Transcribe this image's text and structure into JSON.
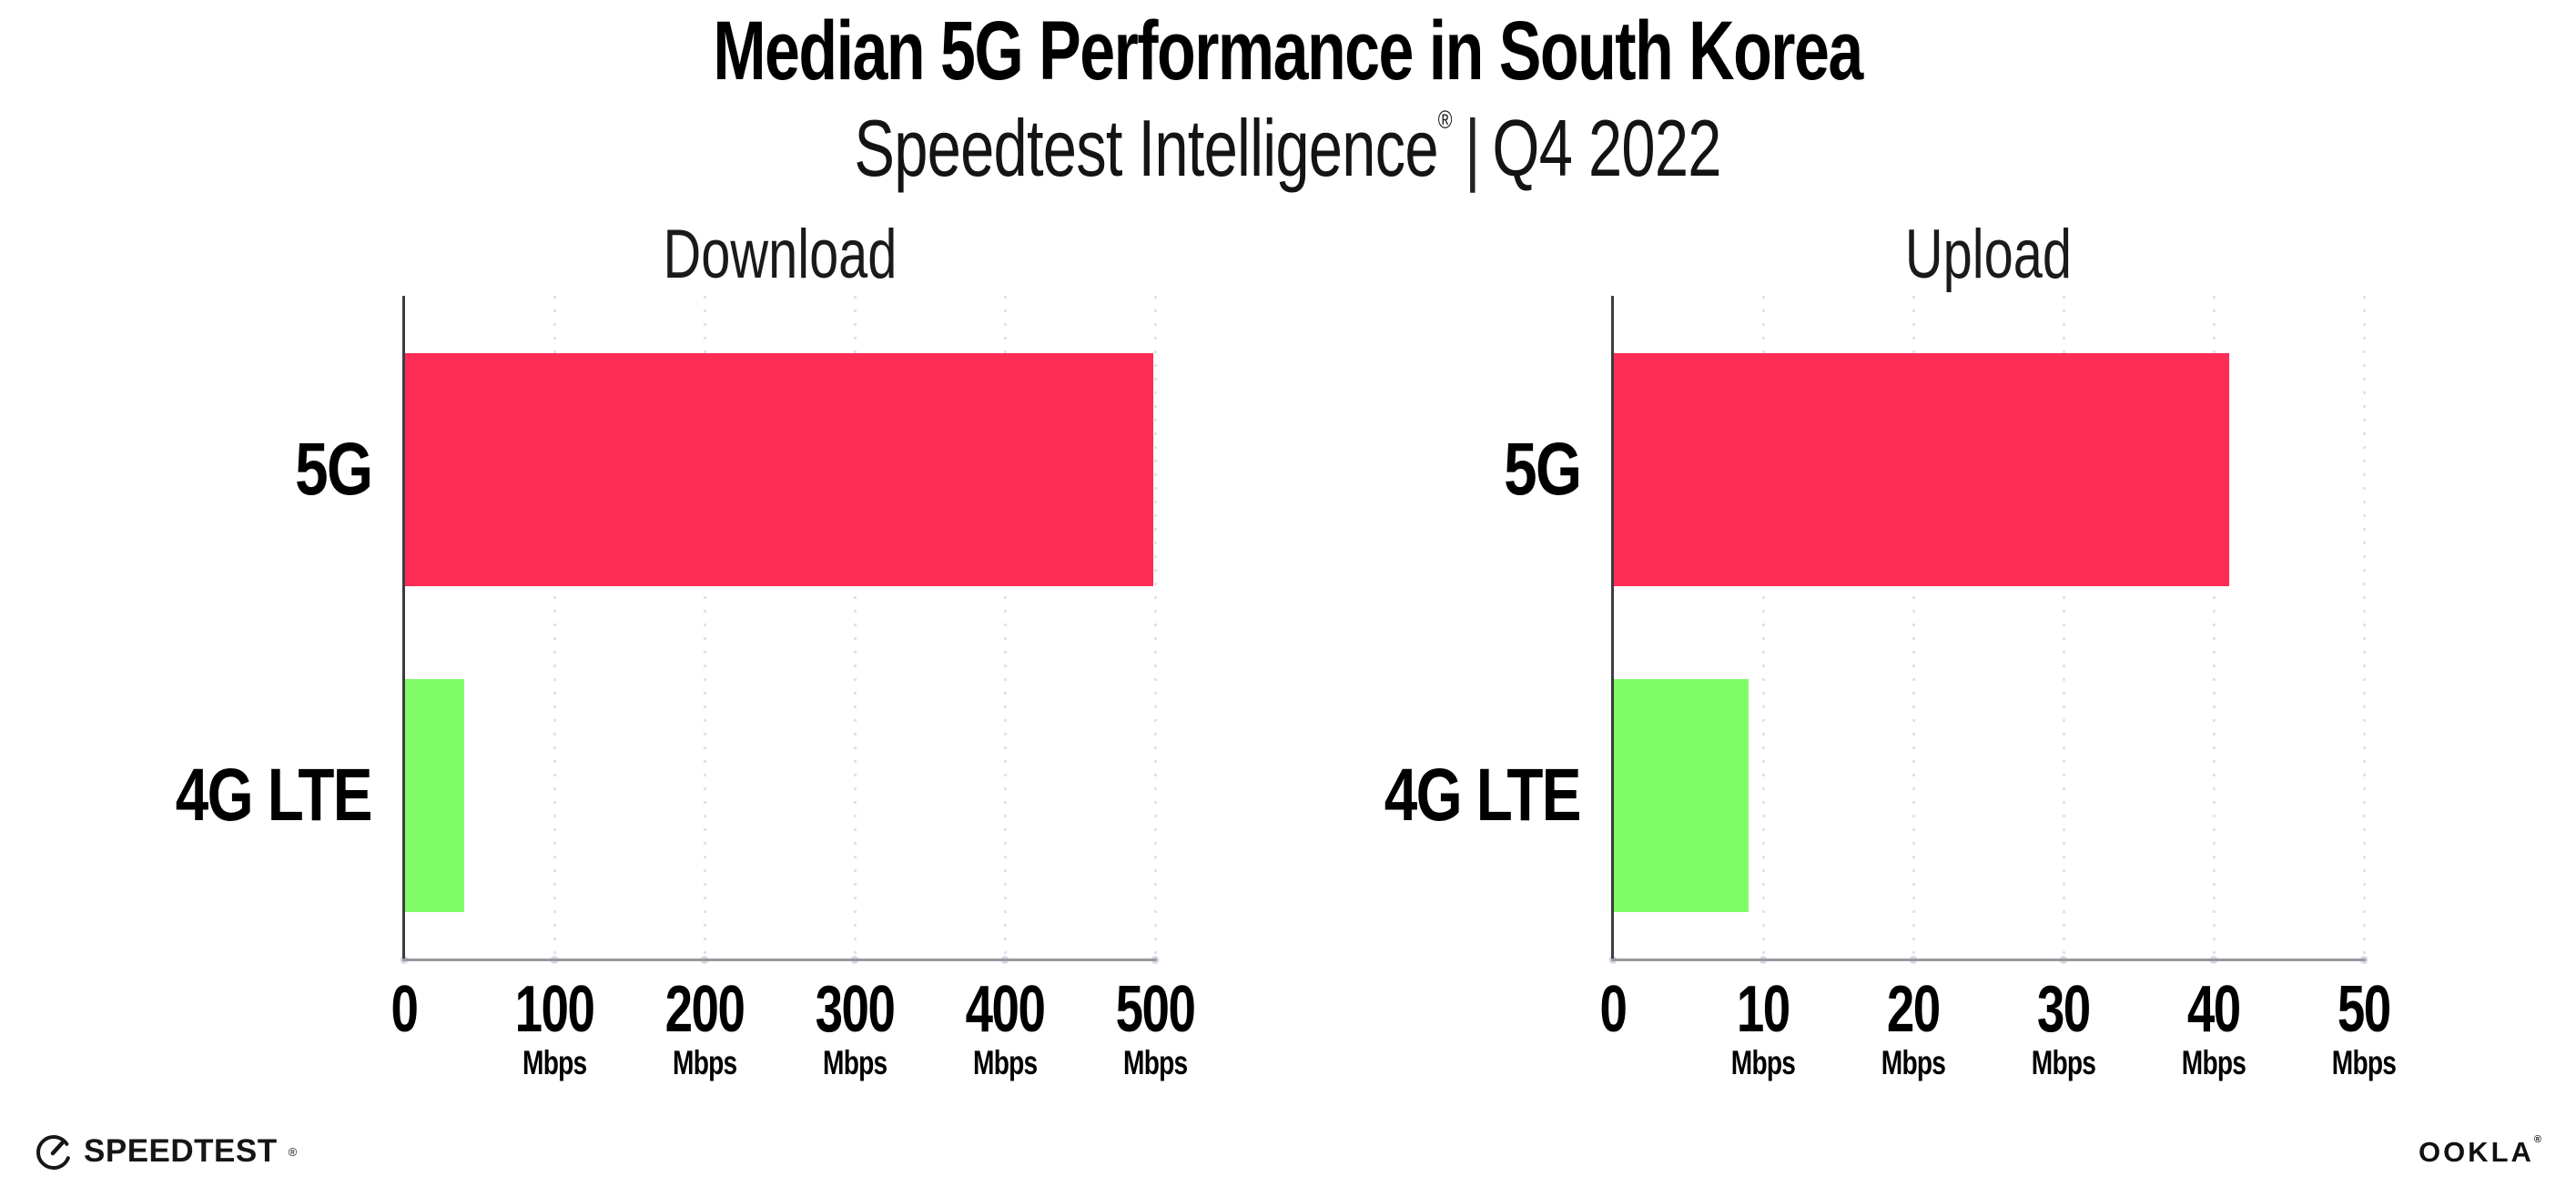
{
  "header": {
    "title": "Median 5G Performance in South Korea",
    "subtitle": {
      "brand": "Speedtest Intelligence",
      "reg": "®",
      "separator": "|",
      "period": "Q4 2022"
    }
  },
  "colors": {
    "bar_5g": "#FD2D55",
    "bar_4g_lte": "#80FC66",
    "gridline": "#E2E2EC",
    "x_axis": "#98989E",
    "y_axis": "#3C3C42",
    "text": "#000000"
  },
  "chart_data": [
    {
      "type": "bar",
      "orientation": "horizontal",
      "title": "Download",
      "categories": [
        "5G",
        "4G LTE"
      ],
      "values": [
        499,
        40
      ],
      "unit": "Mbps",
      "xlim": [
        0,
        500
      ],
      "xticks": [
        0,
        100,
        200,
        300,
        400,
        500
      ],
      "bar_colors": [
        "#FD2D55",
        "#80FC66"
      ],
      "grid": "dotted-vertical",
      "legend": "none"
    },
    {
      "type": "bar",
      "orientation": "horizontal",
      "title": "Upload",
      "categories": [
        "5G",
        "4G LTE"
      ],
      "values": [
        41,
        9
      ],
      "unit": "Mbps",
      "xlim": [
        0,
        50
      ],
      "xticks": [
        0,
        10,
        20,
        30,
        40,
        50
      ],
      "bar_colors": [
        "#FD2D55",
        "#80FC66"
      ],
      "grid": "dotted-vertical",
      "legend": "none"
    }
  ],
  "footer": {
    "speedtest_label": "SPEEDTEST",
    "speedtest_reg": "®",
    "ookla_label": "OOKLA",
    "ookla_reg": "®"
  }
}
